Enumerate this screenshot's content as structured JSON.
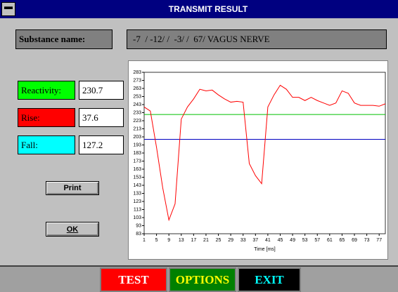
{
  "window": {
    "title": "TRANSMIT RESULT"
  },
  "substance": {
    "label": "Substance name:",
    "value": "-7  / -12/ /  -3/ /  67/ VAGUS NERVE"
  },
  "fields": [
    {
      "label": "Reactivity:",
      "value": "230.7",
      "color": "#00ff00"
    },
    {
      "label": "Rise:",
      "value": "37.6",
      "color": "#ff0000"
    },
    {
      "label": "Fall:",
      "value": "127.2",
      "color": "#00ffff"
    }
  ],
  "buttons": [
    "Print",
    "OK"
  ],
  "menu": [
    {
      "label": "TEST",
      "bg": "#ff0000",
      "fg": "#ffffff"
    },
    {
      "label": "OPTIONS",
      "bg": "#008000",
      "fg": "#ffff00"
    },
    {
      "label": "EXIT",
      "bg": "#000000",
      "fg": "#00ffff"
    }
  ],
  "chart_data": {
    "type": "line",
    "x_label": "Time [ms]",
    "x": [
      1,
      3,
      5,
      7,
      9,
      11,
      13,
      15,
      17,
      19,
      21,
      23,
      25,
      27,
      29,
      31,
      33,
      35,
      37,
      39,
      41,
      43,
      45,
      47,
      49,
      51,
      53,
      55,
      57,
      59,
      61,
      63,
      65,
      67,
      69,
      71,
      73,
      75,
      77,
      79
    ],
    "series": [
      {
        "color": "#ff0000",
        "values": [
          240,
          235,
          190,
          140,
          100,
          120,
          225,
          240,
          250,
          262,
          260,
          261,
          255,
          250,
          246,
          247,
          246,
          170,
          155,
          145,
          240,
          255,
          267,
          262,
          252,
          252,
          248,
          252,
          248,
          245,
          242,
          245,
          260,
          257,
          245,
          242,
          242,
          242,
          241,
          244
        ]
      }
    ],
    "hlines": [
      {
        "value": 230.7,
        "color": "#00c000"
      },
      {
        "value": 200,
        "color": "#0000c0"
      }
    ],
    "xlim": [
      1,
      79
    ],
    "ylim": [
      83,
      283
    ],
    "xticks": [
      1,
      5,
      9,
      13,
      17,
      21,
      25,
      29,
      33,
      37,
      41,
      45,
      49,
      53,
      57,
      61,
      65,
      69,
      73,
      77
    ],
    "yticks": [
      83,
      93,
      103,
      113,
      123,
      133,
      143,
      153,
      163,
      173,
      183,
      193,
      203,
      213,
      223,
      233,
      243,
      253,
      263,
      273,
      283
    ]
  }
}
